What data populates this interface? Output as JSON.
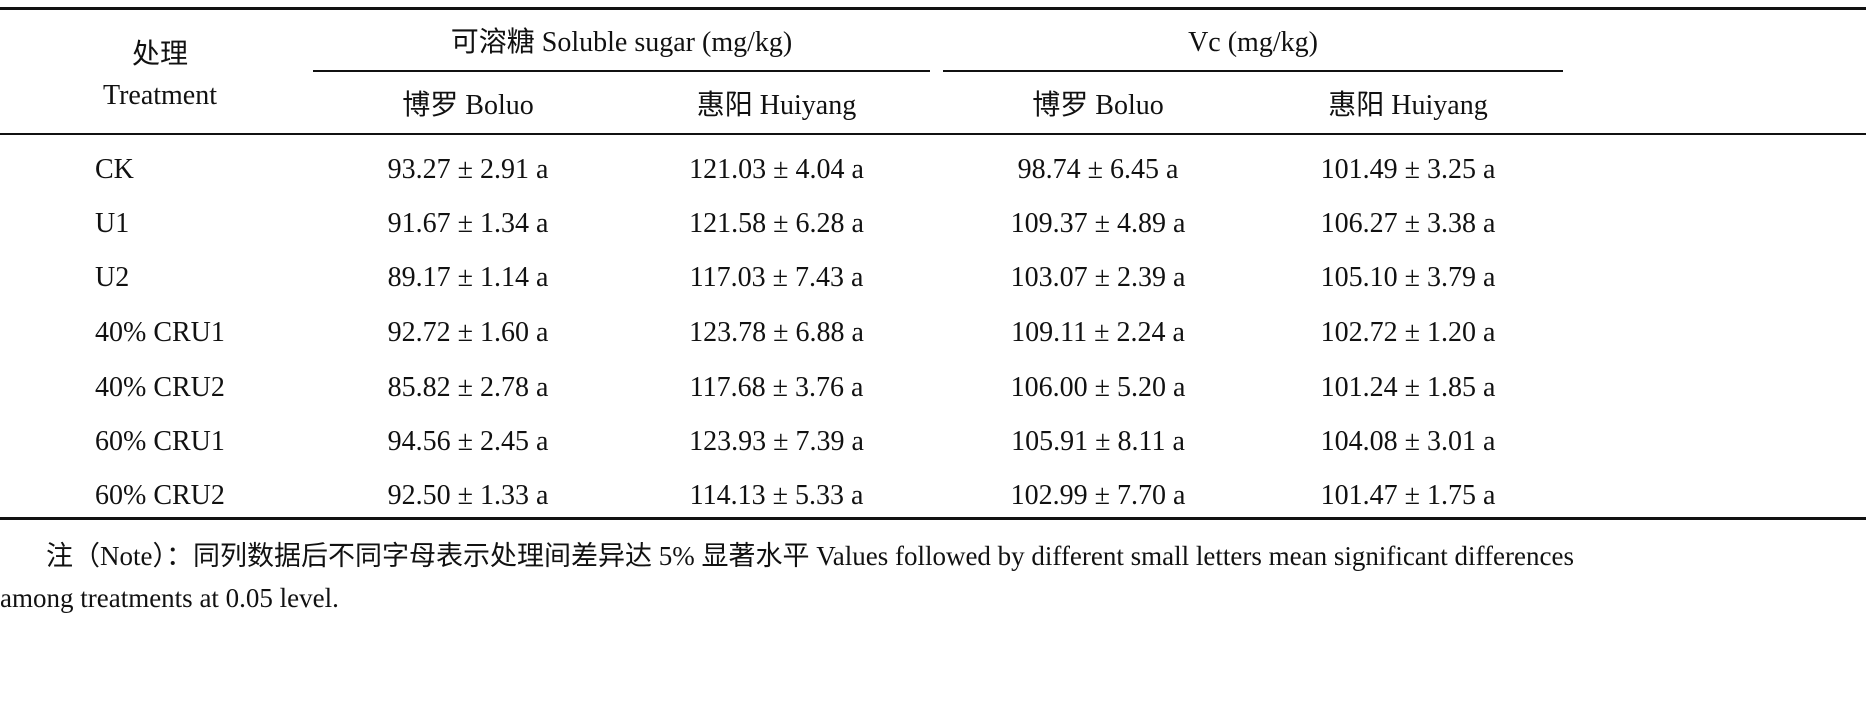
{
  "table": {
    "header": {
      "treatment_cn": "处理",
      "treatment_en": "Treatment",
      "group1": "可溶糖 Soluble sugar (mg/kg)",
      "group2": "Vc (mg/kg)",
      "sub": [
        "博罗 Boluo",
        "惠阳 Huiyang",
        "博罗 Boluo",
        "惠阳 Huiyang"
      ]
    },
    "rows": [
      {
        "label": "CK",
        "cells": [
          "93.27 ± 2.91 a",
          "121.03 ± 4.04 a",
          "98.74 ± 6.45 a",
          "101.49 ± 3.25 a"
        ]
      },
      {
        "label": "U1",
        "cells": [
          "91.67 ± 1.34 a",
          "121.58 ± 6.28 a",
          "109.37 ± 4.89 a",
          "106.27 ± 3.38 a"
        ]
      },
      {
        "label": "U2",
        "cells": [
          "89.17 ± 1.14 a",
          "117.03 ± 7.43 a",
          "103.07 ± 2.39 a",
          "105.10 ± 3.79 a"
        ]
      },
      {
        "label": "40% CRU1",
        "cells": [
          "92.72 ± 1.60 a",
          "123.78 ± 6.88 a",
          "109.11 ± 2.24 a",
          "102.72 ± 1.20 a"
        ]
      },
      {
        "label": "40% CRU2",
        "cells": [
          "85.82 ± 2.78 a",
          "117.68 ± 3.76 a",
          "106.00 ± 5.20 a",
          "101.24 ± 1.85 a"
        ]
      },
      {
        "label": "60% CRU1",
        "cells": [
          "94.56 ± 2.45 a",
          "123.93 ± 7.39 a",
          "105.91 ± 8.11 a",
          "104.08 ± 3.01 a"
        ]
      },
      {
        "label": "60% CRU2",
        "cells": [
          "92.50 ± 1.33 a",
          "114.13 ± 5.33 a",
          "102.99 ± 7.70 a",
          "101.47 ± 1.75 a"
        ]
      }
    ]
  },
  "note": {
    "line1": "注（Note）：同列数据后不同字母表示处理间差异达 5% 显著水平 Values followed by different small letters mean significant differences",
    "line2": "among treatments at 0.05 level."
  }
}
